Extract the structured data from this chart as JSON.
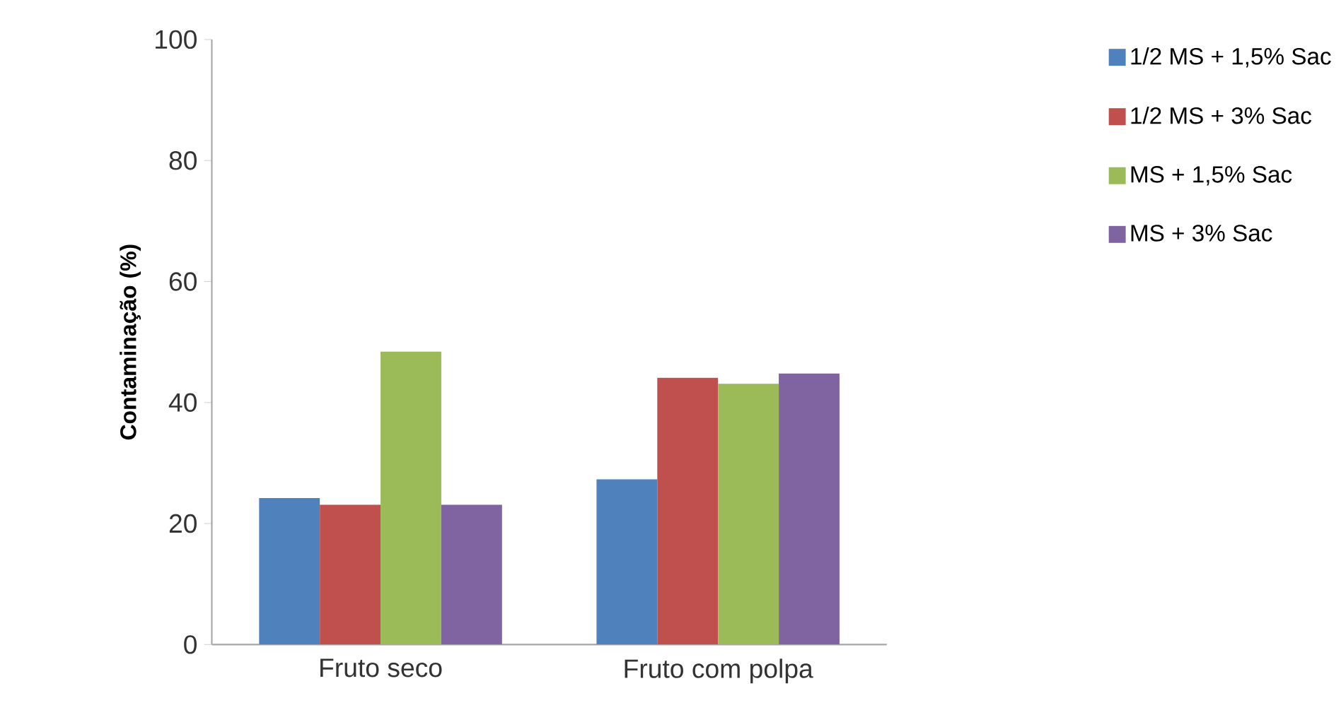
{
  "chart_data": {
    "type": "bar",
    "ylabel": "Contaminação (%)",
    "categories": [
      "Fruto seco",
      "Fruto com polpa"
    ],
    "series": [
      {
        "name": "1/2 MS + 1,5% Sac",
        "color": "#4f81bd",
        "values": [
          24.2,
          27.3
        ]
      },
      {
        "name": "1/2 MS + 3% Sac",
        "color": "#c0504d",
        "values": [
          23.1,
          44.1
        ]
      },
      {
        "name": "MS + 1,5% Sac",
        "color": "#9bbb59",
        "values": [
          48.4,
          43.1
        ]
      },
      {
        "name": "MS + 3% Sac",
        "color": "#8064a2",
        "values": [
          23.1,
          44.8
        ]
      }
    ],
    "ylim": [
      0,
      100
    ],
    "yticks": [
      0,
      20,
      40,
      60,
      80,
      100
    ],
    "grid": false,
    "legend": "right"
  }
}
